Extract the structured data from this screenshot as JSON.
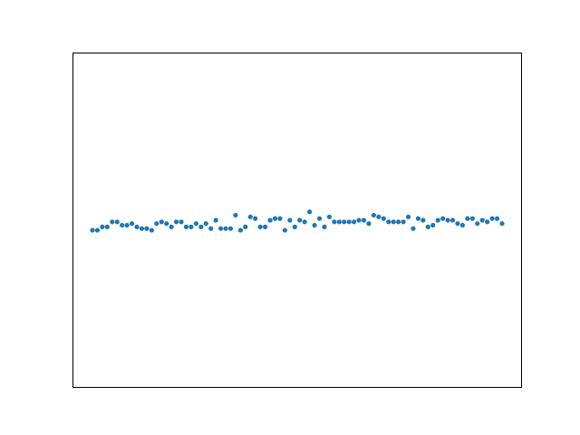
{
  "chart_data": {
    "type": "scatter",
    "title": "",
    "xlabel": "",
    "ylabel": "",
    "grid": false,
    "legend": "none",
    "axes": {
      "ticks_shown": false,
      "tick_labels_shown": false
    },
    "xlim": [
      -3.95,
      86.95
    ],
    "ylim": [
      -1.0,
      1.0
    ],
    "marker_color": "#1f77b4",
    "series": [
      {
        "x": [
          0,
          1,
          2,
          3,
          4,
          5,
          6,
          7,
          8,
          9,
          10,
          11,
          12,
          13,
          14,
          15,
          16,
          17,
          18,
          19,
          20,
          21,
          22,
          23,
          24,
          25,
          26,
          27,
          28,
          29,
          30,
          31,
          32,
          33,
          34,
          35,
          36,
          37,
          38,
          39,
          40,
          41,
          42,
          43,
          44,
          45,
          46,
          47,
          48,
          49,
          50,
          51,
          52,
          53,
          54,
          55,
          56,
          57,
          58,
          59,
          60,
          61,
          62,
          63,
          64,
          65,
          66,
          67,
          68,
          69,
          70,
          71,
          72,
          73,
          74,
          75,
          76,
          77,
          78,
          79,
          80,
          81,
          82,
          83
        ],
        "y": [
          -0.06,
          -0.06,
          -0.04,
          -0.04,
          -0.01,
          -0.01,
          -0.03,
          -0.03,
          -0.02,
          -0.04,
          -0.05,
          -0.05,
          -0.06,
          -0.02,
          -0.01,
          -0.02,
          -0.04,
          -0.01,
          -0.01,
          -0.04,
          -0.04,
          -0.02,
          -0.04,
          -0.02,
          -0.05,
          0.0,
          -0.05,
          -0.05,
          -0.05,
          0.03,
          -0.06,
          -0.04,
          0.02,
          0.01,
          -0.04,
          -0.04,
          0.0,
          0.01,
          0.01,
          -0.06,
          0.0,
          -0.04,
          0.0,
          -0.01,
          0.05,
          -0.03,
          0.01,
          -0.04,
          0.02,
          -0.01,
          -0.01,
          -0.01,
          -0.01,
          -0.01,
          0.0,
          0.0,
          -0.02,
          0.03,
          0.02,
          0.01,
          -0.01,
          -0.01,
          -0.01,
          -0.01,
          0.02,
          -0.05,
          0.01,
          0.0,
          -0.04,
          -0.03,
          0.0,
          0.01,
          0.0,
          0.0,
          -0.02,
          -0.03,
          0.01,
          0.01,
          -0.02,
          0.0,
          -0.01,
          0.01,
          0.01,
          -0.02
        ]
      }
    ]
  }
}
